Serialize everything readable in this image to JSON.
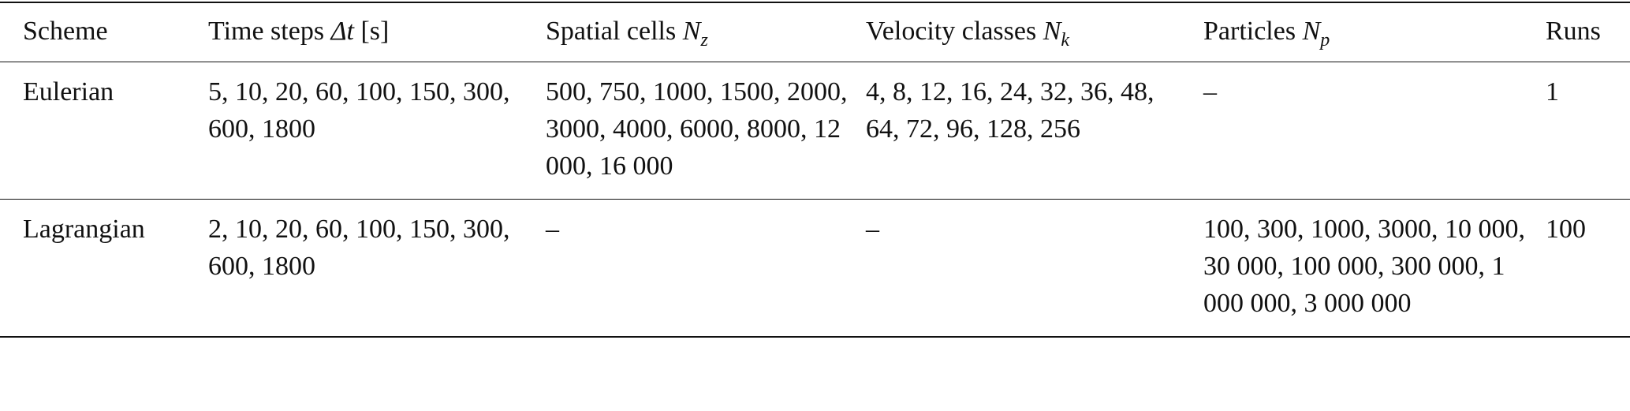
{
  "table": {
    "columns": [
      {
        "text": "Scheme"
      },
      {
        "text": "Time steps",
        "var": "Δt",
        "unit": "[s]"
      },
      {
        "text": "Spatial cells",
        "var": "N",
        "sub": "z"
      },
      {
        "text": "Velocity classes",
        "var": "N",
        "sub": "k"
      },
      {
        "text": "Particles",
        "var": "N",
        "sub": "p"
      },
      {
        "text": "Runs"
      }
    ],
    "rows": [
      [
        "Eulerian",
        "5, 10, 20, 60, 100, 150, 300, 600, 1800",
        "500, 750, 1000, 1500, 2000, 3000, 4000, 6000, 8000, 12 000, 16 000",
        "4, 8, 12, 16, 24, 32, 36, 48, 64, 72, 96, 128, 256",
        "–",
        "1"
      ],
      [
        "Lagrangian",
        "2, 10, 20, 60, 100, 150, 300, 600, 1800",
        "–",
        "–",
        "100, 300, 1000, 3000, 10 000, 30 000, 100 000, 300 000, 1 000 000, 3 000 000",
        "100"
      ]
    ]
  }
}
